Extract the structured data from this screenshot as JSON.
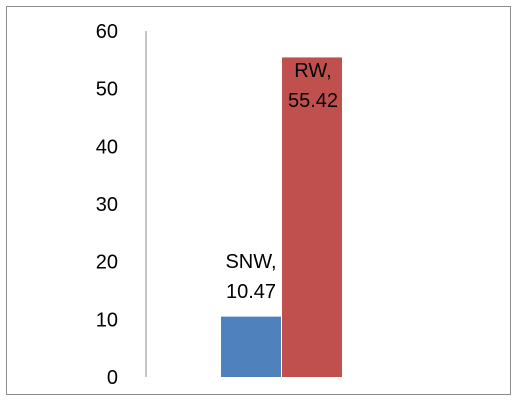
{
  "chart_data": {
    "type": "bar",
    "title": "",
    "xlabel": "",
    "ylabel": "",
    "ylim": [
      0,
      60
    ],
    "yticks": [
      "0",
      "10",
      "20",
      "30",
      "40",
      "50",
      "60"
    ],
    "grid": false,
    "legend": "none",
    "categories": [
      "SNW",
      "RW"
    ],
    "values": [
      10.47,
      55.42
    ],
    "colors": [
      "#4f81bd",
      "#c0504d"
    ],
    "data_labels": [
      {
        "name": "SNW,",
        "value": "10.47"
      },
      {
        "name": "RW,",
        "value": "55.42"
      }
    ]
  }
}
